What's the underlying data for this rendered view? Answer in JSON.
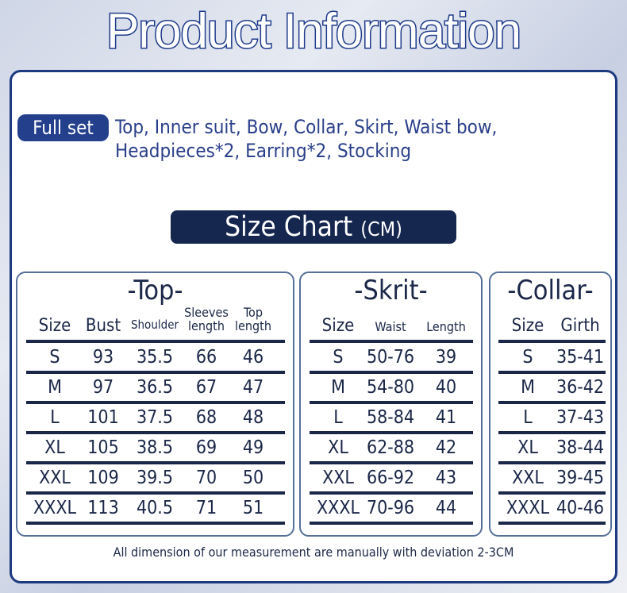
{
  "title": "Product Information",
  "full_set": {
    "label": "Full set",
    "items": "Top,  Inner suit,  Bow,  Collar,  Skirt,  Waist bow,  Headpieces*2,  Earring*2,  Stocking"
  },
  "size_chart": {
    "label": "Size Chart",
    "unit": "(CM)"
  },
  "tables": {
    "top": {
      "title": "-Top-",
      "headers": [
        "Size",
        "Bust",
        "Shoulder",
        "Sleeves length",
        "Top length"
      ],
      "rows": [
        [
          "S",
          "93",
          "35.5",
          "66",
          "46"
        ],
        [
          "M",
          "97",
          "36.5",
          "67",
          "47"
        ],
        [
          "L",
          "101",
          "37.5",
          "68",
          "48"
        ],
        [
          "XL",
          "105",
          "38.5",
          "69",
          "49"
        ],
        [
          "XXL",
          "109",
          "39.5",
          "70",
          "50"
        ],
        [
          "XXXL",
          "113",
          "40.5",
          "71",
          "51"
        ]
      ]
    },
    "skirt": {
      "title": "-Skrit-",
      "headers": [
        "Size",
        "Waist",
        "Length"
      ],
      "rows": [
        [
          "S",
          "50-76",
          "39"
        ],
        [
          "M",
          "54-80",
          "40"
        ],
        [
          "L",
          "58-84",
          "41"
        ],
        [
          "XL",
          "62-88",
          "42"
        ],
        [
          "XXL",
          "66-92",
          "43"
        ],
        [
          "XXXL",
          "70-96",
          "44"
        ]
      ]
    },
    "collar": {
      "title": "-Collar-",
      "headers": [
        "Size",
        "Girth"
      ],
      "rows": [
        [
          "S",
          "35-41"
        ],
        [
          "M",
          "36-42"
        ],
        [
          "L",
          "37-43"
        ],
        [
          "XL",
          "38-44"
        ],
        [
          "XXL",
          "39-45"
        ],
        [
          "XXXL",
          "40-46"
        ]
      ]
    }
  },
  "footnote": "All dimension of our measurement are manually with deviation 2-3CM",
  "colors": {
    "navy": "#15274f",
    "accent": "#243f8c"
  }
}
